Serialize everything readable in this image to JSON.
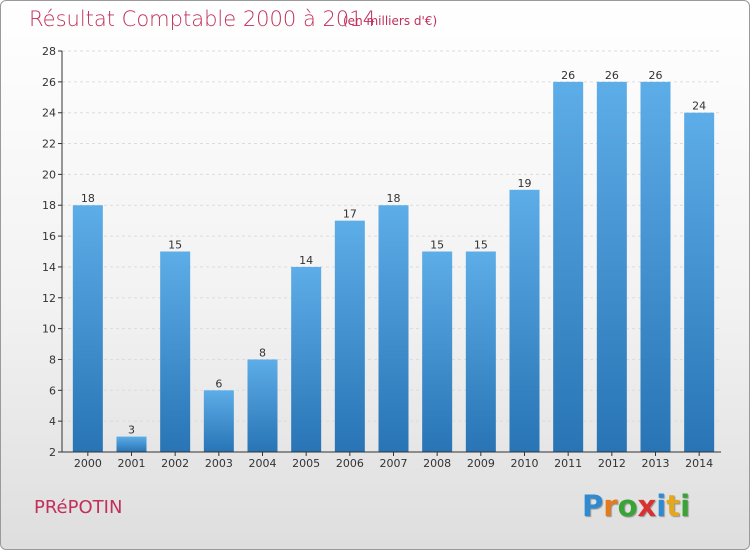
{
  "header": {
    "title": "Résultat Comptable 2000 à 2014",
    "subtitle": "(en milliers d'€)"
  },
  "footer": {
    "commune": "PRéPOTIN",
    "logo_text": "Proxiti",
    "logo_letters": [
      {
        "char": "P",
        "color": "#2f8ad0"
      },
      {
        "char": "r",
        "color": "#e37a1e"
      },
      {
        "char": "o",
        "color": "#3aa335"
      },
      {
        "char": "x",
        "color": "#d8312f"
      },
      {
        "char": "i",
        "color": "#2f8ad0"
      },
      {
        "char": "t",
        "color": "#e3a81e"
      },
      {
        "char": "i",
        "color": "#3aa335"
      }
    ]
  },
  "colors": {
    "accent": "#c0305a",
    "bar_top": "#5dade8",
    "bar_bottom": "#2874b5",
    "axis": "#333333"
  },
  "chart_data": {
    "type": "bar",
    "categories": [
      "2000",
      "2001",
      "2002",
      "2003",
      "2004",
      "2005",
      "2006",
      "2007",
      "2008",
      "2009",
      "2010",
      "2011",
      "2012",
      "2013",
      "2014"
    ],
    "values": [
      18,
      3,
      15,
      6,
      8,
      14,
      17,
      18,
      15,
      15,
      19,
      26,
      26,
      26,
      24
    ],
    "ylim": [
      2,
      28
    ],
    "yticks": [
      2,
      4,
      6,
      8,
      10,
      12,
      14,
      16,
      18,
      20,
      22,
      24,
      26,
      28
    ],
    "grid": true,
    "data_labels": true
  }
}
